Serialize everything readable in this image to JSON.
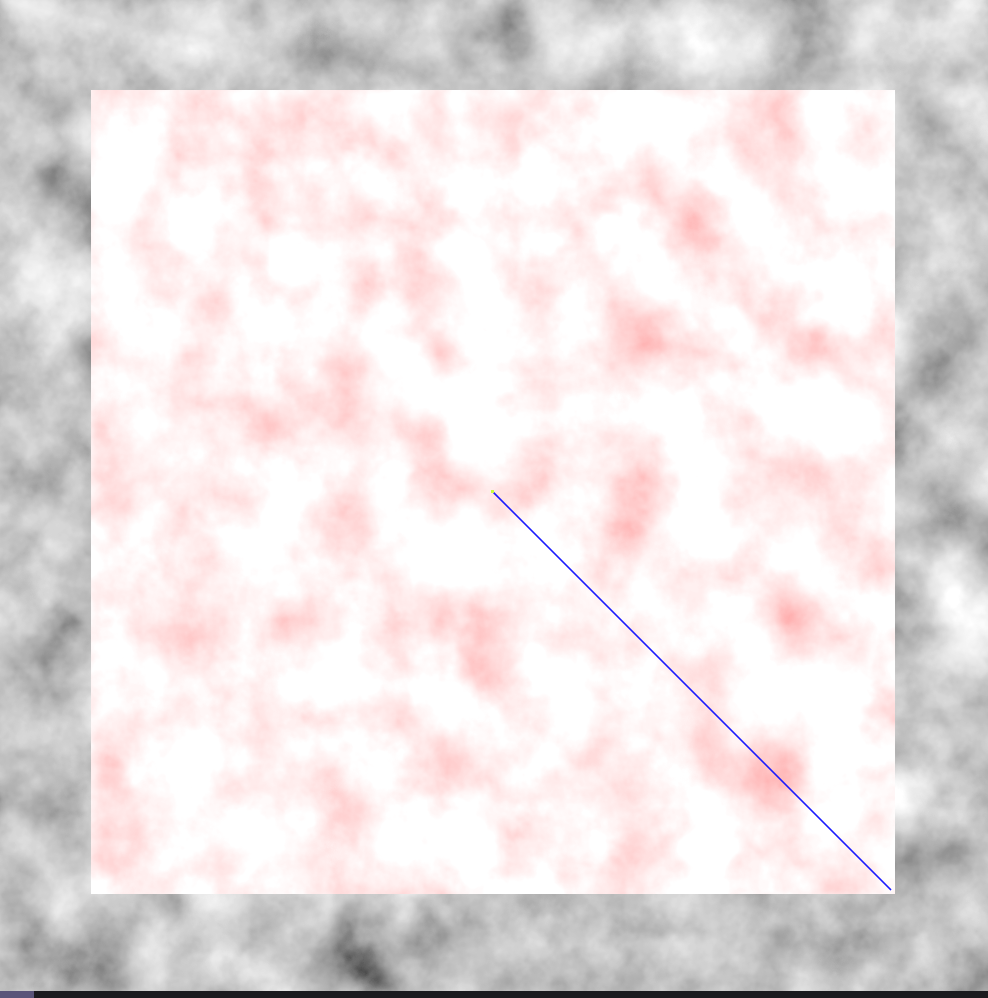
{
  "canvas": {
    "background_texture": "gray-cloud-noise",
    "selection_region": {
      "fill_texture": "red-cloud-noise",
      "base_color": "#ff6b6b",
      "highlight_color": "#ffa3a3"
    },
    "guide_line": {
      "color": "#1a1aff",
      "start_marker_color": "#c8ff3a"
    },
    "bottom_strip": {
      "color": "#1b1b1f",
      "accent_color": "#5a5479"
    }
  }
}
